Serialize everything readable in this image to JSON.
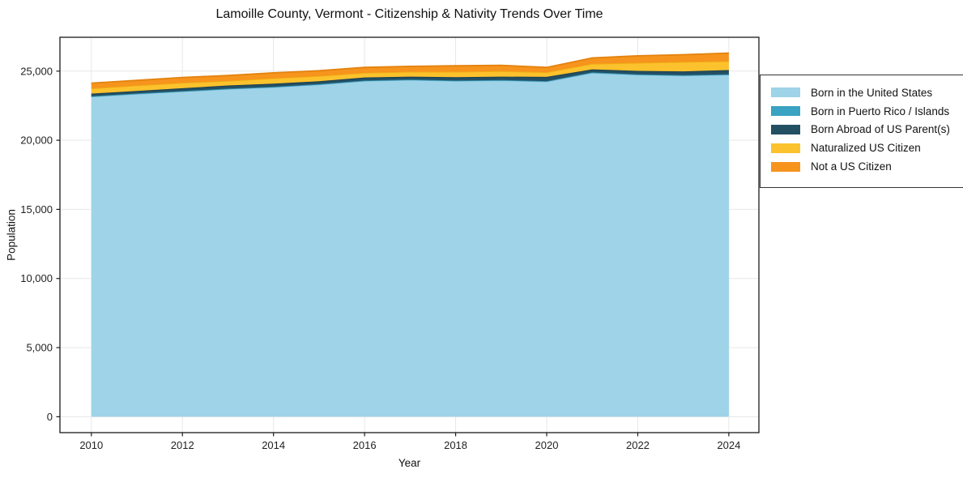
{
  "figure": {
    "background": "#ffffff"
  },
  "chart_data": {
    "type": "area",
    "stacked": true,
    "title": "Lamoille County, Vermont - Citizenship & Nativity Trends Over Time",
    "xlabel": "Year",
    "ylabel": "Population",
    "x": [
      2010,
      2011,
      2012,
      2013,
      2014,
      2015,
      2016,
      2017,
      2018,
      2019,
      2020,
      2021,
      2022,
      2023,
      2024
    ],
    "series": [
      {
        "name": "Born in the United States",
        "color": "#9ed3e8",
        "edge_color": "#82c0da",
        "values": [
          23160,
          23350,
          23530,
          23705,
          23840,
          24035,
          24290,
          24365,
          24290,
          24330,
          24250,
          24880,
          24740,
          24685,
          24740
        ]
      },
      {
        "name": "Born in Puerto Rico / Islands",
        "color": "#3aa2c2",
        "edge_color": "#2f8fad",
        "values": [
          30,
          30,
          30,
          30,
          30,
          30,
          30,
          30,
          30,
          30,
          30,
          30,
          30,
          30,
          30
        ]
      },
      {
        "name": "Born Abroad of US Parent(s)",
        "color": "#234f63",
        "edge_color": "#1b3f50",
        "values": [
          180,
          190,
          205,
          225,
          230,
          205,
          225,
          205,
          245,
          240,
          305,
          220,
          245,
          265,
          305
        ]
      },
      {
        "name": "Naturalized US Citizen",
        "color": "#fcc22d",
        "edge_color": "#eead15",
        "values": [
          375,
          390,
          390,
          330,
          385,
          370,
          335,
          355,
          390,
          395,
          335,
          395,
          585,
          680,
          645
        ]
      },
      {
        "name": "Not a US Citizen",
        "color": "#f7941d",
        "edge_color": "#e3820e",
        "values": [
          385,
          370,
          390,
          395,
          395,
          390,
          390,
          390,
          430,
          430,
          350,
          430,
          510,
          530,
          585
        ]
      }
    ],
    "axes": {
      "xlim": [
        2009.31,
        2024.66
      ],
      "ylim": [
        -1150,
        27450
      ],
      "xticks": [
        2010,
        2012,
        2014,
        2016,
        2018,
        2020,
        2022,
        2024
      ],
      "xtick_labels": [
        "2010",
        "2012",
        "2014",
        "2016",
        "2018",
        "2020",
        "2022",
        "2024"
      ],
      "yticks": [
        0,
        5000,
        10000,
        15000,
        20000,
        25000
      ],
      "ytick_labels": [
        "0",
        "5,000",
        "10,000",
        "15,000",
        "20,000",
        "25,000"
      ],
      "grid": true,
      "grid_color": "#e7e7e7",
      "spine_color": "#1a1a1a",
      "text_color": "#1f1f1f"
    },
    "legend": {
      "position": "outside-right",
      "border_color": "#333333",
      "background": "#ffffff"
    }
  }
}
